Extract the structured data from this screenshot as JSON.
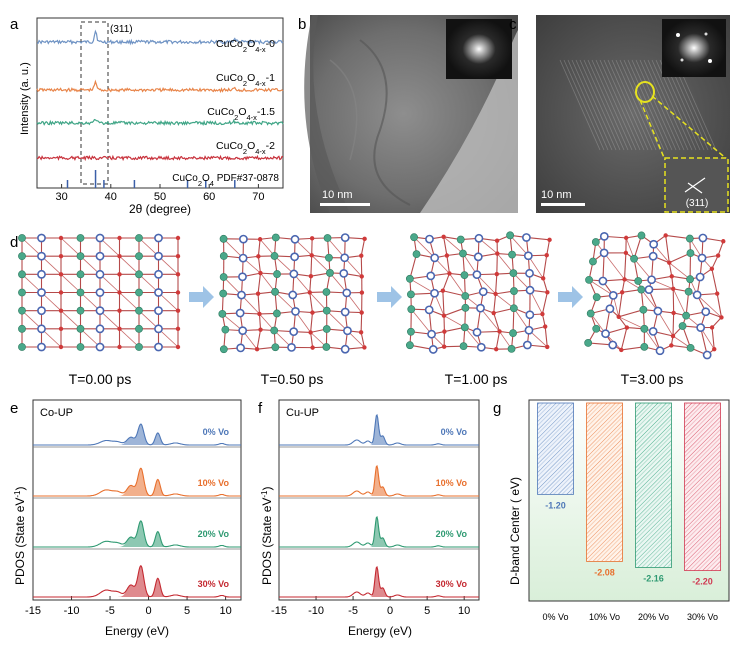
{
  "panels": {
    "a": {
      "label": "a",
      "peak_label": "(311)",
      "ylabel": "Intensity (a. u.)",
      "xlabel": "2θ (degree)",
      "xticks": [
        "30",
        "40",
        "50",
        "60",
        "70"
      ],
      "series": [
        {
          "name": "CuCo2O4-x-0",
          "base": "CuCo",
          "sub1": "2",
          "mid": "O",
          "sub2": "4-x",
          "tail": "-0",
          "color": "#6f93c4"
        },
        {
          "name": "CuCo2O4-x-1",
          "base": "CuCo",
          "sub1": "2",
          "mid": "O",
          "sub2": "4-x",
          "tail": "-1",
          "color": "#e8854a"
        },
        {
          "name": "CuCo2O4-x-1.5",
          "base": "CuCo",
          "sub1": "2",
          "mid": "O",
          "sub2": "4-x",
          "tail": "-1.5",
          "color": "#3fa586"
        },
        {
          "name": "CuCo2O4-x-2",
          "base": "CuCo",
          "sub1": "2",
          "mid": "O",
          "sub2": "4-x",
          "tail": "-2",
          "color": "#c8323c"
        }
      ],
      "reference": {
        "base": "CuCo",
        "sub1": "2",
        "mid": "O",
        "sub2": "4",
        "tail": " PDF#37-0878",
        "color": "#3b5fa8"
      }
    },
    "b": {
      "label": "b",
      "scale": "10 nm"
    },
    "c": {
      "label": "c",
      "scale": "10 nm",
      "plane": "(311)"
    },
    "d": {
      "label": "d",
      "frames": [
        "T=0.00 ps",
        "T=0.50 ps",
        "T=1.00 ps",
        "T=3.00 ps"
      ]
    },
    "e": {
      "label": "e",
      "title": "Co-UP",
      "ylabel_main": "PDOS (State eV",
      "ylabel_sup": "-1",
      "ylabel_end": ")",
      "xlabel": "Energy (eV)",
      "xticks": [
        "-15",
        "-10",
        "-5",
        "0",
        "5",
        "10"
      ],
      "curves": [
        {
          "label": "0% Vo",
          "color": "#4f78b8"
        },
        {
          "label": "10% Vo",
          "color": "#e8702e"
        },
        {
          "label": "20% Vo",
          "color": "#2f9a72"
        },
        {
          "label": "30% Vo",
          "color": "#c42a32"
        }
      ]
    },
    "f": {
      "label": "f",
      "title": "Cu-UP",
      "ylabel_main": "PDOS (State eV",
      "ylabel_sup": "-1",
      "ylabel_end": ")",
      "xlabel": "Energy (eV)",
      "xticks": [
        "-15",
        "-10",
        "-5",
        "0",
        "5",
        "10"
      ],
      "curves": [
        {
          "label": "0% Vo",
          "color": "#4f78b8"
        },
        {
          "label": "10% Vo",
          "color": "#e8702e"
        },
        {
          "label": "20% Vo",
          "color": "#2f9a72"
        },
        {
          "label": "30% Vo",
          "color": "#c42a32"
        }
      ]
    },
    "g": {
      "label": "g"
    }
  },
  "chart_data": {
    "type": "bar",
    "categories": [
      "0% Vo",
      "10% Vo",
      "20% Vo",
      "30% Vo"
    ],
    "values": [
      -1.2,
      -2.08,
      -2.16,
      -2.2
    ],
    "value_labels": [
      "-1.20",
      "-2.08",
      "-2.16",
      "-2.20"
    ],
    "colors": [
      "#4f78b8",
      "#e8702e",
      "#2f9a72",
      "#d03a52"
    ],
    "ylabel": "D-band Center ( eV)",
    "ylim": [
      -2.6,
      0
    ]
  }
}
